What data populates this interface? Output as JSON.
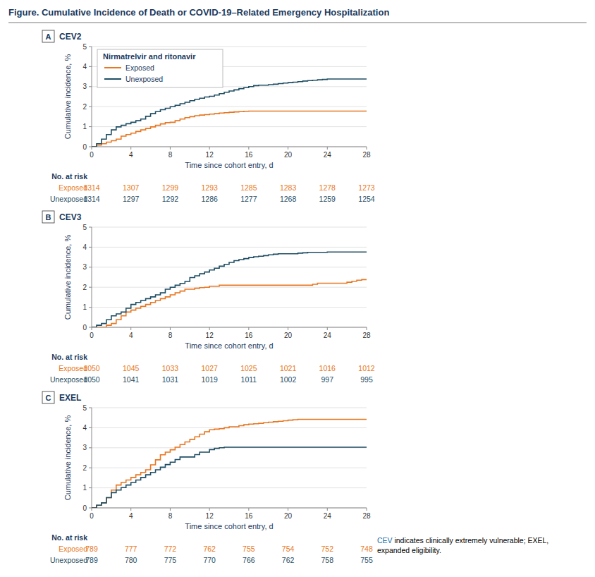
{
  "chart_data": [
    {
      "type": "line",
      "title": "Figure. Cumulative Incidence of Death or COVID-19–Related Emergency Hospitalization",
      "label": "A",
      "subtitle": "CEV2",
      "xlabel": "Time since cohort entry, d",
      "ylabel": "Cumulative incidence, %",
      "xlim": [
        0,
        28
      ],
      "xticks": [
        0,
        4,
        8,
        12,
        16,
        20,
        24,
        28
      ],
      "ylim": [
        0,
        5
      ],
      "yticks": [
        0,
        1,
        2,
        3,
        4,
        5
      ],
      "grid": true,
      "legend": "upper left",
      "legend_title": "Nirmatrelvir and ritonavir",
      "series": [
        {
          "name": "Exposed",
          "color": "#E87722",
          "line_style": "step",
          "x": [
            0,
            0.5,
            1,
            1.5,
            2,
            2.5,
            3,
            3.5,
            4,
            4.5,
            5,
            5.5,
            6,
            6.5,
            7,
            7.5,
            8,
            8.5,
            9,
            9.5,
            10,
            10.5,
            11,
            11.5,
            12,
            12.5,
            13,
            13.5,
            14,
            14.5,
            15,
            15.5,
            16,
            16.5,
            17,
            17.5,
            18,
            18.5,
            19,
            19.5,
            20,
            21,
            22,
            23,
            24,
            25,
            26,
            27,
            28
          ],
          "values": [
            0,
            0.08,
            0.15,
            0.23,
            0.3,
            0.38,
            0.53,
            0.61,
            0.68,
            0.76,
            0.84,
            0.91,
            0.99,
            1.07,
            1.14,
            1.2,
            1.22,
            1.3,
            1.38,
            1.45,
            1.5,
            1.55,
            1.58,
            1.6,
            1.63,
            1.65,
            1.68,
            1.7,
            1.72,
            1.74,
            1.75,
            1.77,
            1.78,
            1.78,
            1.78,
            1.78,
            1.78,
            1.78,
            1.78,
            1.78,
            1.78,
            1.78,
            1.78,
            1.78,
            1.78,
            1.78,
            1.78,
            1.78,
            1.78
          ]
        },
        {
          "name": "Unexposed",
          "color": "#1F4E64",
          "line_style": "step",
          "x": [
            0,
            0.5,
            1,
            1.5,
            2,
            2.5,
            3,
            3.5,
            4,
            4.5,
            5,
            5.5,
            6,
            6.5,
            7,
            7.5,
            8,
            8.5,
            9,
            9.5,
            10,
            10.5,
            11,
            11.5,
            12,
            12.5,
            13,
            13.5,
            14,
            14.5,
            15,
            15.5,
            16,
            16.5,
            17,
            17.5,
            18,
            18.5,
            19,
            19.5,
            20,
            20.5,
            21,
            21.5,
            22,
            22.5,
            23,
            23.5,
            24,
            24.5,
            25,
            25.5,
            26,
            26.5,
            27,
            27.5,
            28
          ],
          "values": [
            0,
            0.15,
            0.38,
            0.61,
            0.84,
            0.99,
            1.07,
            1.15,
            1.22,
            1.3,
            1.38,
            1.52,
            1.65,
            1.75,
            1.85,
            1.92,
            2.0,
            2.07,
            2.15,
            2.22,
            2.3,
            2.37,
            2.42,
            2.48,
            2.52,
            2.58,
            2.65,
            2.72,
            2.78,
            2.84,
            2.9,
            2.95,
            3.0,
            3.05,
            3.07,
            3.07,
            3.1,
            3.12,
            3.15,
            3.18,
            3.2,
            3.22,
            3.25,
            3.28,
            3.3,
            3.32,
            3.34,
            3.36,
            3.38,
            3.38,
            3.38,
            3.38,
            3.38,
            3.38,
            3.38,
            3.38,
            3.38
          ]
        }
      ],
      "at_risk": {
        "title": "No. at risk",
        "times": [
          0,
          4,
          8,
          12,
          16,
          20,
          24,
          28
        ],
        "rows": [
          {
            "name": "Exposed",
            "values": [
              1314,
              1307,
              1299,
              1293,
              1285,
              1283,
              1278,
              1273
            ]
          },
          {
            "name": "Unexposed",
            "values": [
              1314,
              1297,
              1292,
              1286,
              1277,
              1268,
              1259,
              1254
            ]
          }
        ]
      }
    },
    {
      "type": "line",
      "label": "B",
      "subtitle": "CEV3",
      "xlabel": "Time since cohort entry, d",
      "ylabel": "Cumulative incidence, %",
      "xlim": [
        0,
        28
      ],
      "xticks": [
        0,
        4,
        8,
        12,
        16,
        20,
        24,
        28
      ],
      "ylim": [
        0,
        5
      ],
      "yticks": [
        0,
        1,
        2,
        3,
        4,
        5
      ],
      "grid": true,
      "series": [
        {
          "name": "Exposed",
          "color": "#E87722",
          "line_style": "step",
          "x": [
            0,
            0.5,
            1,
            1.5,
            2,
            2.5,
            3,
            3.5,
            4,
            4.5,
            5,
            5.5,
            6,
            6.5,
            7,
            7.5,
            8,
            8.5,
            9,
            9.5,
            10,
            10.5,
            11,
            11.5,
            12,
            12.5,
            13,
            13.5,
            14,
            14.5,
            15,
            15.5,
            16,
            18,
            19.5,
            20,
            21,
            22,
            22.5,
            23,
            23.5,
            24,
            24.5,
            25,
            25.5,
            26,
            26.5,
            27,
            27.5,
            28
          ],
          "values": [
            0,
            0.0,
            0.0,
            0.1,
            0.19,
            0.38,
            0.57,
            0.76,
            0.86,
            0.95,
            1.05,
            1.14,
            1.24,
            1.34,
            1.43,
            1.52,
            1.62,
            1.72,
            1.81,
            1.9,
            1.9,
            1.95,
            1.98,
            2.0,
            2.05,
            2.05,
            2.1,
            2.1,
            2.1,
            2.1,
            2.1,
            2.1,
            2.1,
            2.1,
            2.1,
            2.1,
            2.1,
            2.1,
            2.15,
            2.2,
            2.2,
            2.2,
            2.2,
            2.2,
            2.2,
            2.25,
            2.3,
            2.35,
            2.38,
            2.38
          ]
        },
        {
          "name": "Unexposed",
          "color": "#1F4E64",
          "line_style": "step",
          "x": [
            0,
            0.5,
            1,
            1.5,
            2,
            2.5,
            3,
            3.5,
            4,
            4.5,
            5,
            5.5,
            6,
            6.5,
            7,
            7.5,
            8,
            8.5,
            9,
            9.5,
            10,
            10.5,
            11,
            11.5,
            12,
            12.5,
            13,
            13.5,
            14,
            14.5,
            15,
            15.5,
            16,
            16.5,
            17,
            17.5,
            18,
            18.5,
            19,
            19.5,
            20,
            20.5,
            21,
            21.5,
            22,
            22.5,
            23,
            23.5,
            24,
            24.5,
            25,
            25.5,
            26,
            26.5,
            27,
            27.5,
            28
          ],
          "values": [
            0,
            0.1,
            0.19,
            0.38,
            0.57,
            0.67,
            0.76,
            0.95,
            1.14,
            1.24,
            1.34,
            1.43,
            1.52,
            1.62,
            1.72,
            1.9,
            2.0,
            2.1,
            2.19,
            2.29,
            2.48,
            2.57,
            2.67,
            2.76,
            2.86,
            2.95,
            3.05,
            3.14,
            3.24,
            3.33,
            3.38,
            3.43,
            3.48,
            3.52,
            3.55,
            3.58,
            3.62,
            3.65,
            3.67,
            3.67,
            3.67,
            3.67,
            3.7,
            3.72,
            3.74,
            3.74,
            3.74,
            3.74,
            3.76,
            3.76,
            3.76,
            3.76,
            3.76,
            3.76,
            3.76,
            3.76,
            3.76
          ]
        }
      ],
      "at_risk": {
        "title": "No. at risk",
        "times": [
          0,
          4,
          8,
          12,
          16,
          20,
          24,
          28
        ],
        "rows": [
          {
            "name": "Exposed",
            "values": [
              1050,
              1045,
              1033,
              1027,
              1025,
              1021,
              1016,
              1012
            ]
          },
          {
            "name": "Unexposed",
            "values": [
              1050,
              1041,
              1031,
              1019,
              1011,
              1002,
              997,
              995
            ]
          }
        ]
      }
    },
    {
      "type": "line",
      "label": "C",
      "subtitle": "EXEL",
      "xlabel": "Time since cohort entry, d",
      "ylabel": "Cumulative incidence, %",
      "xlim": [
        0,
        28
      ],
      "xticks": [
        0,
        4,
        8,
        12,
        16,
        20,
        24,
        28
      ],
      "ylim": [
        0,
        5
      ],
      "yticks": [
        0,
        1,
        2,
        3,
        4,
        5
      ],
      "grid": true,
      "series": [
        {
          "name": "Exposed",
          "color": "#E87722",
          "line_style": "step",
          "x": [
            0,
            0.5,
            1,
            1.5,
            2,
            2.5,
            3,
            3.5,
            4,
            4.5,
            5,
            5.5,
            6,
            6.5,
            7,
            7.5,
            8,
            8.5,
            9,
            9.5,
            10,
            10.5,
            11,
            11.5,
            12,
            12.5,
            13,
            13.5,
            14,
            14.5,
            15,
            15.5,
            16,
            16.5,
            17,
            17.5,
            18,
            18.5,
            19,
            19.5,
            20,
            20.5,
            21,
            21.5,
            22,
            23,
            24,
            25,
            26,
            27,
            28
          ],
          "values": [
            0,
            0.13,
            0.25,
            0.51,
            0.89,
            1.14,
            1.27,
            1.39,
            1.52,
            1.65,
            1.77,
            1.9,
            2.15,
            2.4,
            2.65,
            2.78,
            2.9,
            3.03,
            3.16,
            3.29,
            3.42,
            3.55,
            3.68,
            3.8,
            3.9,
            3.93,
            3.95,
            4.0,
            4.05,
            4.05,
            4.1,
            4.15,
            4.18,
            4.2,
            4.22,
            4.25,
            4.28,
            4.3,
            4.32,
            4.35,
            4.38,
            4.4,
            4.42,
            4.42,
            4.42,
            4.42,
            4.42,
            4.42,
            4.42,
            4.42,
            4.42
          ]
        },
        {
          "name": "Unexposed",
          "color": "#1F4E64",
          "line_style": "step",
          "x": [
            0,
            0.5,
            1,
            1.5,
            2,
            2.5,
            3,
            3.5,
            4,
            4.5,
            5,
            5.5,
            6,
            6.5,
            7,
            7.5,
            8,
            8.5,
            9,
            9.5,
            10,
            10.5,
            11,
            11.5,
            12,
            12.5,
            13,
            13.5,
            14,
            14.5,
            15,
            15.5,
            16,
            16.5,
            17,
            17.5,
            18,
            18.5,
            19,
            20,
            21,
            22,
            23,
            24,
            25,
            26,
            27,
            28
          ],
          "values": [
            0,
            0.13,
            0.25,
            0.51,
            0.76,
            0.89,
            1.01,
            1.14,
            1.27,
            1.39,
            1.52,
            1.65,
            1.77,
            1.9,
            2.03,
            2.16,
            2.28,
            2.41,
            2.54,
            2.54,
            2.54,
            2.66,
            2.78,
            2.78,
            2.91,
            2.97,
            3.0,
            3.03,
            3.03,
            3.03,
            3.03,
            3.03,
            3.03,
            3.03,
            3.03,
            3.03,
            3.03,
            3.03,
            3.03,
            3.03,
            3.03,
            3.03,
            3.03,
            3.03,
            3.03,
            3.03,
            3.03,
            3.03
          ]
        }
      ],
      "at_risk": {
        "title": "No. at risk",
        "times": [
          0,
          4,
          8,
          12,
          16,
          20,
          24,
          28
        ],
        "rows": [
          {
            "name": "Exposed",
            "values": [
              789,
              777,
              772,
              762,
              755,
              754,
              752,
              748
            ]
          },
          {
            "name": "Unexposed",
            "values": [
              789,
              780,
              775,
              770,
              766,
              762,
              758,
              755
            ]
          }
        ]
      },
      "footnote": [
        [
          {
            "text": "CEV",
            "color": "#1B6CA8"
          },
          {
            "text": "indicates clinically extremely vulnerable; EXEL,",
            "color": "#000000"
          }
        ],
        [
          {
            "text": "expanded eligibility.",
            "color": "#000000"
          }
        ]
      ]
    }
  ]
}
